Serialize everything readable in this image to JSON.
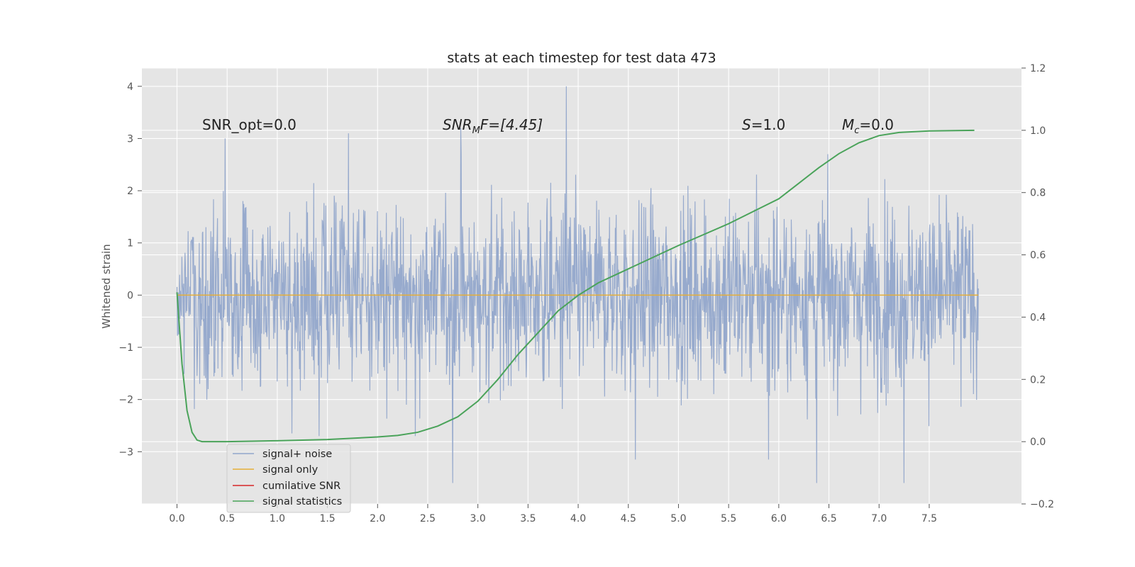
{
  "chart_data": {
    "type": "line",
    "title": "stats at each timestep for test data 473",
    "ylabel": "Whitened strain",
    "ylabel_right": "",
    "xlim": [
      -0.35,
      8.42
    ],
    "ylim": [
      -4.0,
      4.35
    ],
    "ylim_right": [
      -0.2,
      1.2
    ],
    "x_ticks": [
      0.0,
      0.5,
      1.0,
      1.5,
      2.0,
      2.5,
      3.0,
      3.5,
      4.0,
      4.5,
      5.0,
      5.5,
      6.0,
      6.5,
      7.0,
      7.5
    ],
    "x_tick_labels": [
      "0.0",
      "0.5",
      "1.0",
      "1.5",
      "2.0",
      "2.5",
      "3.0",
      "3.5",
      "4.0",
      "4.5",
      "5.0",
      "5.5",
      "6.0",
      "6.5",
      "7.0",
      "7.5"
    ],
    "y_ticks": [
      -3,
      -2,
      -1,
      0,
      1,
      2,
      3,
      4
    ],
    "y_tick_labels": [
      "−3",
      "−2",
      "−1",
      "0",
      "1",
      "2",
      "3",
      "4"
    ],
    "y_right_ticks": [
      -0.2,
      0.0,
      0.2,
      0.4,
      0.6,
      0.8,
      1.0,
      1.2
    ],
    "y_right_tick_labels": [
      "−0.2",
      "0.0",
      "0.2",
      "0.4",
      "0.6",
      "0.8",
      "1.0",
      "1.2"
    ],
    "grid": true,
    "legend_position": "lower-left",
    "annotations": {
      "snr_opt": "SNR_opt=0.0",
      "snr_mf_main": "SNR",
      "snr_mf_sub": "M",
      "snr_mf_rest": "F=[4.45]",
      "s_var": "S",
      "s_val": "=1.0",
      "mc_var": "M",
      "mc_sub": "c",
      "mc_val": "=0.0"
    },
    "series": [
      {
        "name": "signal+ noise",
        "axis": "left",
        "color": "#92a6cb",
        "description_range": [
          -3.6,
          4.0
        ],
        "x_range": [
          0.0,
          7.99
        ],
        "notable_peaks": [
          {
            "x": 0.48,
            "y": 3.0
          },
          {
            "x": 1.71,
            "y": 3.1
          },
          {
            "x": 2.83,
            "y": 3.2
          },
          {
            "x": 3.88,
            "y": 4.0
          },
          {
            "x": 2.75,
            "y": -3.6
          },
          {
            "x": 7.25,
            "y": -3.6
          },
          {
            "x": 6.38,
            "y": -3.6
          },
          {
            "x": 4.57,
            "y": -3.15
          },
          {
            "x": 5.9,
            "y": -3.15
          }
        ]
      },
      {
        "name": "signal only",
        "axis": "left",
        "color": "#e5ae38",
        "x": [
          0.0,
          7.99
        ],
        "y": [
          0.0,
          0.0
        ]
      },
      {
        "name": "cumilative SNR",
        "axis": "left",
        "color": "#d62728",
        "x": [],
        "y": []
      },
      {
        "name": "signal statistics",
        "axis": "right",
        "color": "#4aa35a",
        "x": [
          0.0,
          0.05,
          0.1,
          0.15,
          0.2,
          0.25,
          0.3,
          0.5,
          1.0,
          1.5,
          2.0,
          2.2,
          2.4,
          2.6,
          2.8,
          3.0,
          3.2,
          3.4,
          3.6,
          3.8,
          4.0,
          4.2,
          4.4,
          4.6,
          5.0,
          5.5,
          6.0,
          6.2,
          6.4,
          6.6,
          6.8,
          7.0,
          7.2,
          7.5,
          7.95
        ],
        "y": [
          0.48,
          0.25,
          0.1,
          0.03,
          0.005,
          0.0,
          0.0,
          0.0,
          0.003,
          0.007,
          0.015,
          0.02,
          0.03,
          0.05,
          0.08,
          0.13,
          0.2,
          0.28,
          0.35,
          0.42,
          0.47,
          0.51,
          0.54,
          0.57,
          0.63,
          0.7,
          0.78,
          0.83,
          0.88,
          0.925,
          0.96,
          0.983,
          0.993,
          0.998,
          1.0
        ]
      }
    ]
  }
}
